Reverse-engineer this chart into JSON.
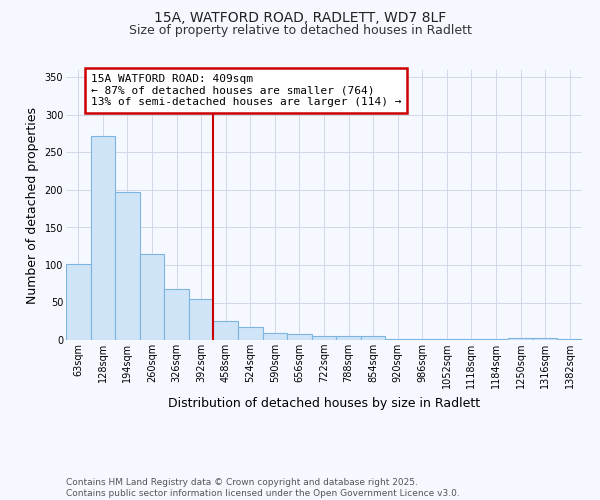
{
  "title_line1": "15A, WATFORD ROAD, RADLETT, WD7 8LF",
  "title_line2": "Size of property relative to detached houses in Radlett",
  "xlabel": "Distribution of detached houses by size in Radlett",
  "ylabel": "Number of detached properties",
  "bin_labels": [
    "63sqm",
    "128sqm",
    "194sqm",
    "260sqm",
    "326sqm",
    "392sqm",
    "458sqm",
    "524sqm",
    "590sqm",
    "656sqm",
    "722sqm",
    "788sqm",
    "854sqm",
    "920sqm",
    "986sqm",
    "1052sqm",
    "1118sqm",
    "1184sqm",
    "1250sqm",
    "1316sqm",
    "1382sqm"
  ],
  "bar_values": [
    102,
    272,
    197,
    115,
    68,
    55,
    26,
    18,
    9,
    8,
    5,
    5,
    5,
    2,
    2,
    1,
    1,
    1,
    3,
    3,
    2
  ],
  "bar_color": "#d0e4f7",
  "bar_edge_color": "#7eb4e0",
  "vline_color": "#cc0000",
  "vline_x": 5.5,
  "annotation_text": "15A WATFORD ROAD: 409sqm\n← 87% of detached houses are smaller (764)\n13% of semi-detached houses are larger (114) →",
  "annotation_box_facecolor": "#ffffff",
  "annotation_box_edgecolor": "#cc0000",
  "ylim": [
    0,
    360
  ],
  "yticks": [
    0,
    50,
    100,
    150,
    200,
    250,
    300,
    350
  ],
  "background_color": "#f5f8ff",
  "grid_color": "#d0d8e8",
  "footer_text": "Contains HM Land Registry data © Crown copyright and database right 2025.\nContains public sector information licensed under the Open Government Licence v3.0.",
  "title_fontsize": 10,
  "subtitle_fontsize": 9,
  "axis_label_fontsize": 9,
  "tick_fontsize": 7,
  "annotation_fontsize": 8,
  "footer_fontsize": 6.5
}
